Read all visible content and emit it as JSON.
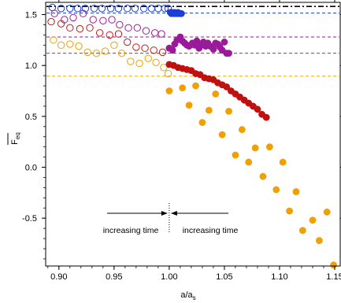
{
  "chart_data": {
    "type": "scatter",
    "xlabel": "a/a",
    "xlabel_sub": "s",
    "ylabel": "F",
    "ylabel_sub": "eq",
    "xlim": [
      0.888,
      1.155
    ],
    "ylim": [
      -0.97,
      1.62
    ],
    "xticks": [
      0.9,
      0.95,
      1.0,
      1.05,
      1.1,
      1.15
    ],
    "xtick_labels": [
      "0.90",
      "0.95",
      "1.00",
      "1.05",
      "1.10",
      "1.15"
    ],
    "yticks": [
      -0.5,
      0.0,
      0.5,
      1.0,
      1.5
    ],
    "ytick_labels": [
      "-0.5",
      "0.0",
      "0.5",
      "1.0",
      "1.5"
    ],
    "grid": false,
    "legend": "none",
    "vline_x": 1.0,
    "annotations": {
      "left": "increasing time",
      "right": "increasing time"
    },
    "hlines": [
      {
        "y": 1.58,
        "color": "#000000",
        "style": "dashdot"
      },
      {
        "y": 1.515,
        "color": "#1a3fd6",
        "style": "dashed"
      },
      {
        "y": 1.28,
        "color": "#9a1a9a",
        "style": "dashed"
      },
      {
        "y": 1.12,
        "color": "#d42020",
        "style": "dashed"
      },
      {
        "y": 0.895,
        "color": "#f0b000",
        "style": "dashed"
      }
    ],
    "series": [
      {
        "color": "#1a3fd6",
        "filled": false,
        "points": [
          [
            0.894,
            1.57
          ],
          [
            0.902,
            1.56
          ],
          [
            0.91,
            1.56
          ],
          [
            0.917,
            1.56
          ],
          [
            0.924,
            1.56
          ],
          [
            0.932,
            1.56
          ],
          [
            0.939,
            1.56
          ],
          [
            0.947,
            1.56
          ],
          [
            0.954,
            1.56
          ],
          [
            0.962,
            1.56
          ],
          [
            0.969,
            1.56
          ],
          [
            0.977,
            1.56
          ],
          [
            0.984,
            1.56
          ],
          [
            0.99,
            1.56
          ],
          [
            0.996,
            1.56
          ],
          [
            0.999,
            1.56
          ]
        ]
      },
      {
        "color": "#9a1a9a",
        "filled": false,
        "points": [
          [
            0.896,
            1.51
          ],
          [
            0.905,
            1.45
          ],
          [
            0.913,
            1.47
          ],
          [
            0.922,
            1.51
          ],
          [
            0.931,
            1.45
          ],
          [
            0.94,
            1.44
          ],
          [
            0.948,
            1.45
          ],
          [
            0.955,
            1.4
          ],
          [
            0.963,
            1.37
          ],
          [
            0.971,
            1.37
          ],
          [
            0.979,
            1.34
          ],
          [
            0.987,
            1.32
          ],
          [
            0.993,
            1.31
          ]
        ]
      },
      {
        "color": "#c81818",
        "filled": false,
        "points": [
          [
            0.893,
            1.43
          ],
          [
            0.902,
            1.41
          ],
          [
            0.91,
            1.37
          ],
          [
            0.919,
            1.36
          ],
          [
            0.928,
            1.37
          ],
          [
            0.937,
            1.32
          ],
          [
            0.946,
            1.3
          ],
          [
            0.954,
            1.31
          ],
          [
            0.962,
            1.23
          ],
          [
            0.97,
            1.18
          ],
          [
            0.978,
            1.17
          ],
          [
            0.986,
            1.15
          ],
          [
            0.994,
            1.13
          ]
        ]
      },
      {
        "color": "#f0a000",
        "filled": false,
        "points": [
          [
            0.895,
            1.25
          ],
          [
            0.902,
            1.2
          ],
          [
            0.91,
            1.21
          ],
          [
            0.918,
            1.19
          ],
          [
            0.926,
            1.13
          ],
          [
            0.934,
            1.12
          ],
          [
            0.942,
            1.14
          ],
          [
            0.95,
            1.2
          ],
          [
            0.957,
            1.12
          ],
          [
            0.965,
            1.04
          ],
          [
            0.973,
            1.02
          ],
          [
            0.981,
            1.07
          ],
          [
            0.988,
            1.03
          ],
          [
            0.995,
            0.98
          ],
          [
            0.999,
            0.92
          ]
        ]
      },
      {
        "color": "#1a3fd6",
        "filled": true,
        "points": [
          [
            1.001,
            1.52
          ],
          [
            1.002,
            1.51
          ],
          [
            1.003,
            1.52
          ],
          [
            1.004,
            1.51
          ],
          [
            1.005,
            1.52
          ],
          [
            1.006,
            1.51
          ],
          [
            1.007,
            1.51
          ],
          [
            1.008,
            1.52
          ],
          [
            1.009,
            1.51
          ],
          [
            1.01,
            1.51
          ],
          [
            1.011,
            1.51
          ]
        ]
      },
      {
        "color": "#9a1a9a",
        "filled": true,
        "points": [
          [
            1.0,
            1.17
          ],
          [
            1.003,
            1.15
          ],
          [
            1.005,
            1.21
          ],
          [
            1.007,
            1.25
          ],
          [
            1.01,
            1.28
          ],
          [
            1.012,
            1.24
          ],
          [
            1.014,
            1.22
          ],
          [
            1.016,
            1.2
          ],
          [
            1.018,
            1.19
          ],
          [
            1.021,
            1.22
          ],
          [
            1.023,
            1.2
          ],
          [
            1.025,
            1.24
          ],
          [
            1.027,
            1.17
          ],
          [
            1.029,
            1.2
          ],
          [
            1.031,
            1.23
          ],
          [
            1.033,
            1.19
          ],
          [
            1.035,
            1.22
          ],
          [
            1.037,
            1.19
          ],
          [
            1.04,
            1.16
          ],
          [
            1.042,
            1.22
          ],
          [
            1.044,
            1.21
          ],
          [
            1.046,
            1.18
          ],
          [
            1.048,
            1.15
          ],
          [
            1.05,
            1.23
          ],
          [
            1.052,
            1.12
          ],
          [
            1.054,
            1.12
          ]
        ]
      },
      {
        "color": "#c01010",
        "filled": true,
        "points": [
          [
            1.0,
            1.01
          ],
          [
            1.004,
            1.0
          ],
          [
            1.008,
            0.98
          ],
          [
            1.012,
            0.97
          ],
          [
            1.016,
            0.96
          ],
          [
            1.02,
            0.95
          ],
          [
            1.024,
            0.92
          ],
          [
            1.028,
            0.91
          ],
          [
            1.032,
            0.88
          ],
          [
            1.036,
            0.87
          ],
          [
            1.04,
            0.86
          ],
          [
            1.044,
            0.83
          ],
          [
            1.048,
            0.81
          ],
          [
            1.052,
            0.79
          ],
          [
            1.056,
            0.75
          ],
          [
            1.06,
            0.72
          ],
          [
            1.064,
            0.69
          ],
          [
            1.068,
            0.66
          ],
          [
            1.072,
            0.63
          ],
          [
            1.076,
            0.6
          ],
          [
            1.08,
            0.57
          ],
          [
            1.084,
            0.52
          ],
          [
            1.088,
            0.49
          ]
        ]
      },
      {
        "color": "#f0a000",
        "filled": true,
        "points": [
          [
            1.0,
            0.75
          ],
          [
            1.012,
            0.78
          ],
          [
            1.018,
            0.61
          ],
          [
            1.024,
            0.8
          ],
          [
            1.03,
            0.44
          ],
          [
            1.036,
            0.56
          ],
          [
            1.042,
            0.72
          ],
          [
            1.048,
            0.32
          ],
          [
            1.054,
            0.55
          ],
          [
            1.06,
            0.12
          ],
          [
            1.066,
            0.37
          ],
          [
            1.072,
            0.05
          ],
          [
            1.078,
            0.19
          ],
          [
            1.085,
            -0.09
          ],
          [
            1.091,
            0.2
          ],
          [
            1.097,
            -0.22
          ],
          [
            1.103,
            0.05
          ],
          [
            1.109,
            -0.43
          ],
          [
            1.115,
            -0.24
          ],
          [
            1.121,
            -0.62
          ],
          [
            1.13,
            -0.52
          ],
          [
            1.136,
            -0.72
          ],
          [
            1.143,
            -0.44
          ],
          [
            1.149,
            -0.96
          ]
        ]
      }
    ]
  }
}
